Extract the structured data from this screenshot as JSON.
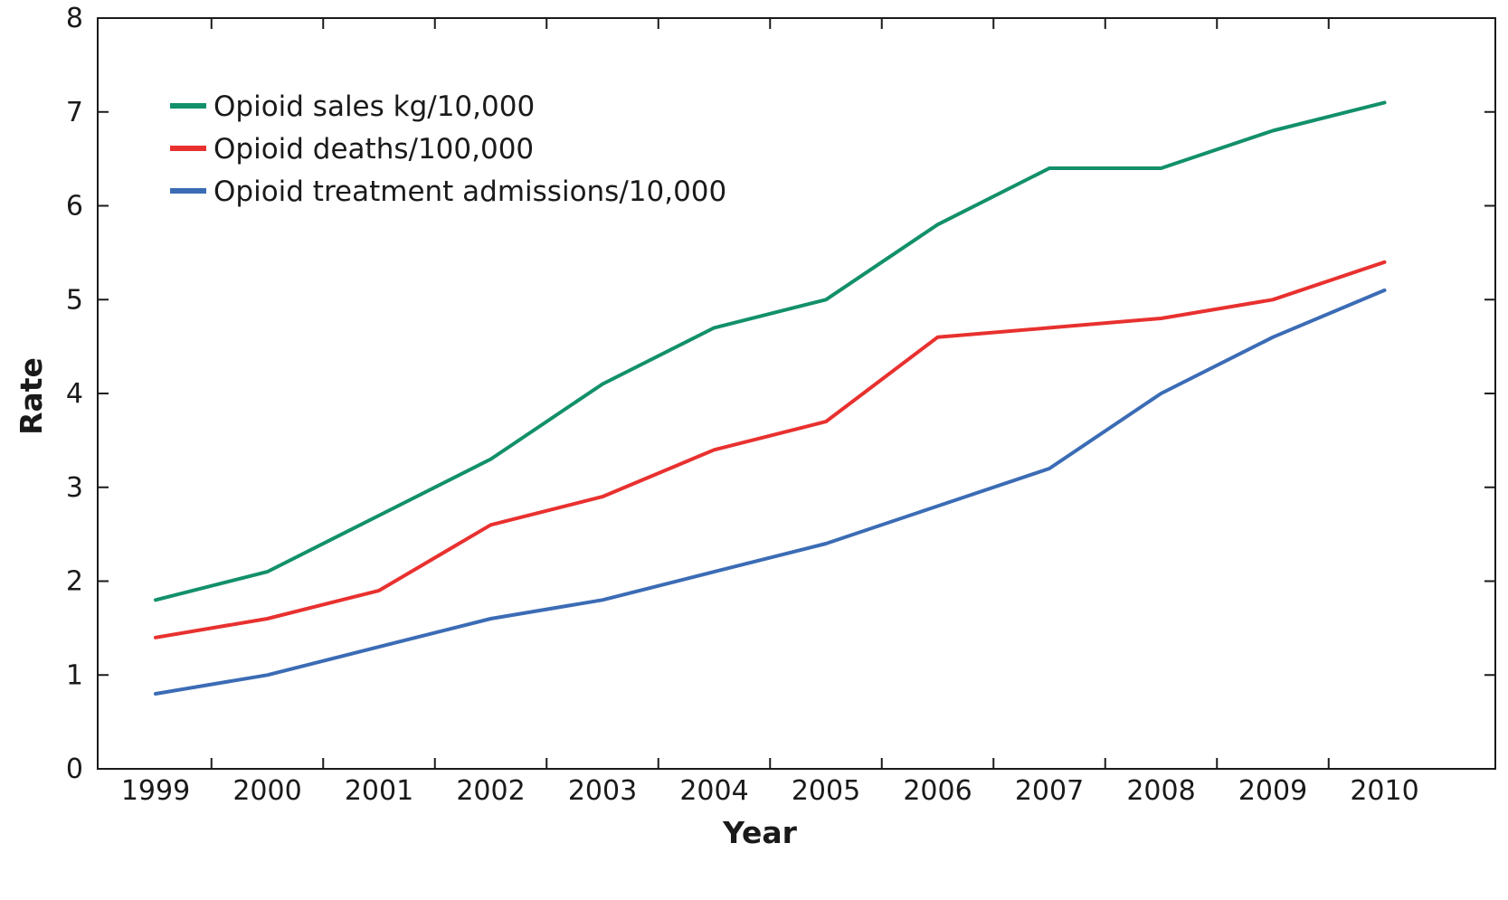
{
  "chart_data": {
    "type": "line",
    "title": "",
    "xlabel": "Year",
    "ylabel": "Rate",
    "x": [
      1999,
      2000,
      2001,
      2002,
      2003,
      2004,
      2005,
      2006,
      2007,
      2008,
      2009,
      2010
    ],
    "x_tick_labels": [
      "1999",
      "2000",
      "2001",
      "2002",
      "2003",
      "2004",
      "2005",
      "2006",
      "2007",
      "2008",
      "2009",
      "2010"
    ],
    "ylim": [
      0,
      8
    ],
    "y_ticks": [
      0,
      1,
      2,
      3,
      4,
      5,
      6,
      7,
      8
    ],
    "y_tick_labels": [
      "0",
      "1",
      "2",
      "3",
      "4",
      "5",
      "6",
      "7",
      "8"
    ],
    "grid": false,
    "legend_position": "top-left",
    "series": [
      {
        "name": "Opioid sales kg/10,000",
        "color": "#12906a",
        "values": [
          1.8,
          2.1,
          2.7,
          3.3,
          4.1,
          4.7,
          5.0,
          5.8,
          6.4,
          6.4,
          6.8,
          7.1
        ]
      },
      {
        "name": "Opioid deaths/100,000",
        "color": "#e8312f",
        "values": [
          1.4,
          1.6,
          1.9,
          2.6,
          2.9,
          3.4,
          3.7,
          4.6,
          4.7,
          4.8,
          5.0,
          5.4
        ]
      },
      {
        "name": "Opioid treatment admissions/10,000",
        "color": "#3b6cb5",
        "values": [
          0.8,
          1.0,
          1.3,
          1.6,
          1.8,
          2.1,
          2.4,
          2.8,
          3.2,
          4.0,
          4.6,
          5.1
        ]
      }
    ]
  }
}
